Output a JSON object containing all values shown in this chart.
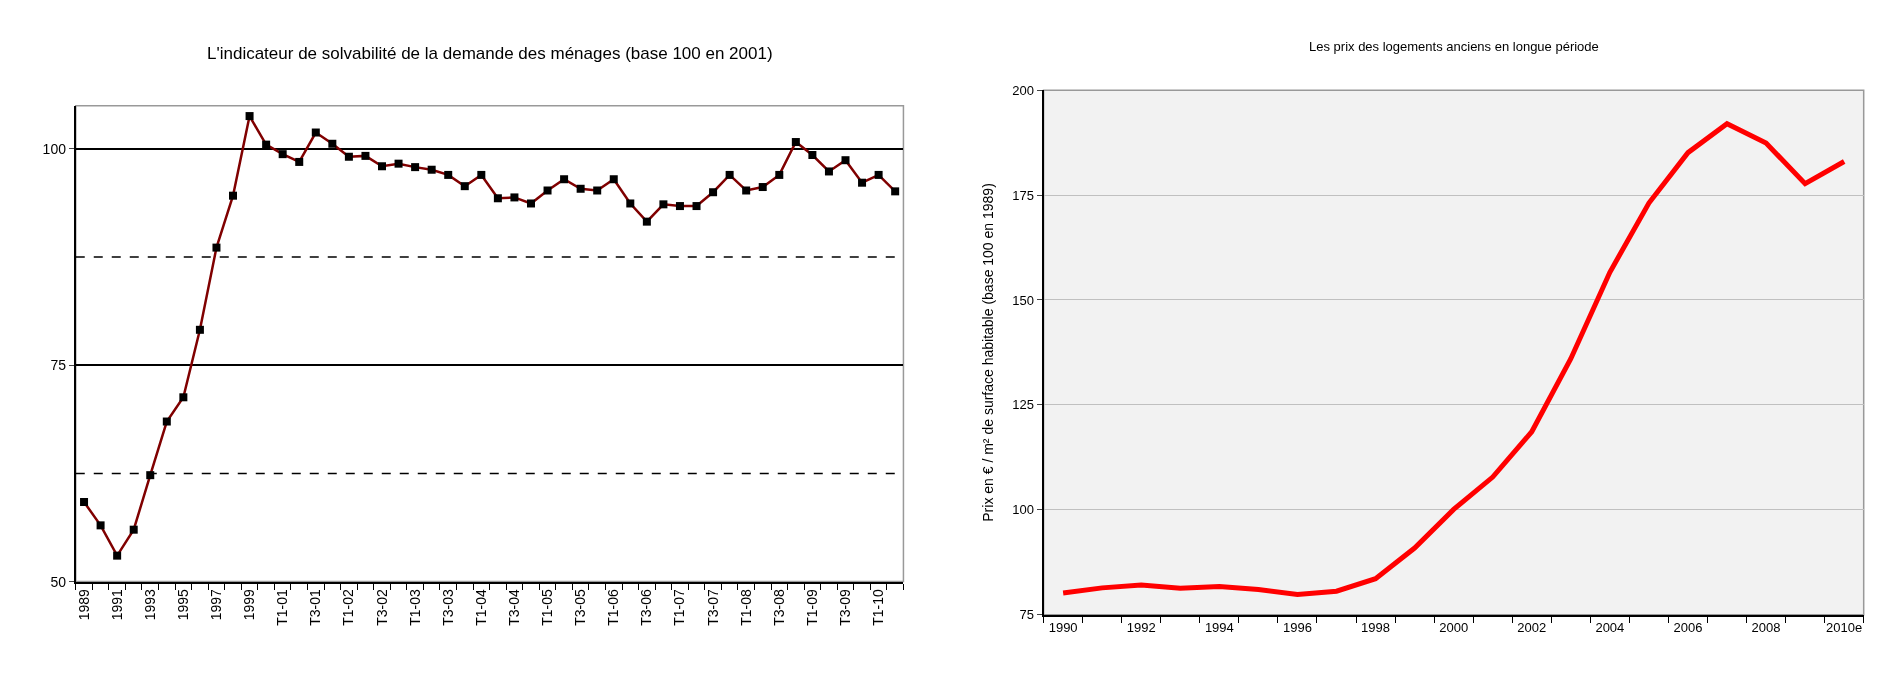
{
  "chart_data": [
    {
      "type": "line",
      "title": "L'indicateur de solvabilité de la demande des ménages (base 100 en 2001)",
      "categories": [
        "1989",
        null,
        "1991",
        null,
        "1993",
        null,
        "1995",
        null,
        "1997",
        null,
        "1999",
        null,
        "T1-01",
        null,
        "T3-01",
        null,
        "T1-02",
        null,
        "T3-02",
        null,
        "T1-03",
        null,
        "T3-03",
        null,
        "T1-04",
        null,
        "T3-04",
        null,
        "T1-05",
        null,
        "T3-05",
        null,
        "T1-06",
        null,
        "T3-06",
        null,
        "T1-07",
        null,
        "T3-07",
        null,
        "T1-08",
        null,
        "T3-08",
        null,
        "T1-09",
        null,
        "T3-09",
        null,
        "T1-10",
        null
      ],
      "series": [
        {
          "color": "#800000",
          "values": [
            59.2,
            56.5,
            53.0,
            56.0,
            62.3,
            68.5,
            71.3,
            79.1,
            88.6,
            94.6,
            103.8,
            100.5,
            99.4,
            98.5,
            101.9,
            100.6,
            99.1,
            99.2,
            98.0,
            98.3,
            97.9,
            97.6,
            97.0,
            95.7,
            97.0,
            94.3,
            94.4,
            93.7,
            95.2,
            96.5,
            95.4,
            95.2,
            96.5,
            93.7,
            91.6,
            93.6,
            93.4,
            93.4,
            95.0,
            97.0,
            95.2,
            95.6,
            97.0,
            100.8,
            99.3,
            97.4,
            98.7,
            96.1,
            97.0,
            95.1
          ]
        }
      ],
      "ylim": [
        50,
        105
      ],
      "yticks": [
        50,
        75,
        100
      ],
      "grid": "y",
      "marker": "square",
      "line_style": "solid",
      "ref_lines": [
        {
          "axis": "y",
          "value": 62.5,
          "color": "#000000",
          "line_style": "dashed"
        },
        {
          "axis": "y",
          "value": 87.5,
          "color": "#000000",
          "line_style": "dashed"
        }
      ]
    },
    {
      "type": "line",
      "title": "Les prix des logements anciens en longue période",
      "ylabel": "Prix en € / m² de surface habitable (base 100 en 1989)",
      "categories": [
        "1990",
        null,
        "1992",
        null,
        "1994",
        null,
        "1996",
        null,
        "1998",
        null,
        "2000",
        null,
        "2002",
        null,
        "2004",
        null,
        "2006",
        null,
        "2008",
        null,
        "2010e"
      ],
      "series": [
        {
          "color": "#ff0000",
          "values": [
            80.2,
            81.4,
            82.1,
            81.3,
            81.7,
            81.0,
            79.8,
            80.6,
            83.6,
            90.9,
            100.1,
            107.8,
            118.6,
            136.0,
            156.6,
            173.1,
            185.1,
            192.0,
            187.4,
            177.7,
            183.0
          ]
        }
      ],
      "ylim": [
        75,
        200
      ],
      "yticks": [
        75,
        100,
        125,
        150,
        175,
        200
      ],
      "grid": "y",
      "marker": "none",
      "line_style": "solid"
    }
  ]
}
